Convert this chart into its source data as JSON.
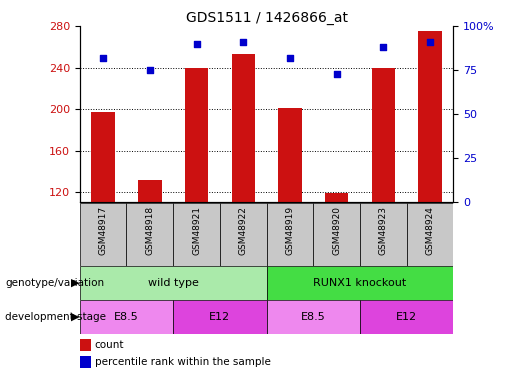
{
  "title": "GDS1511 / 1426866_at",
  "samples": [
    "GSM48917",
    "GSM48918",
    "GSM48921",
    "GSM48922",
    "GSM48919",
    "GSM48920",
    "GSM48923",
    "GSM48924"
  ],
  "counts": [
    197,
    132,
    240,
    253,
    201,
    119,
    240,
    275
  ],
  "percentiles": [
    82,
    75,
    90,
    91,
    82,
    73,
    88,
    91
  ],
  "ylim_left": [
    110,
    280
  ],
  "ylim_right": [
    0,
    100
  ],
  "yticks_left": [
    120,
    160,
    200,
    240,
    280
  ],
  "yticks_right": [
    0,
    25,
    50,
    75,
    100
  ],
  "bar_color": "#cc1111",
  "dot_color": "#0000cc",
  "bar_bottom": 110,
  "genotype_groups": [
    {
      "label": "wild type",
      "start": 0,
      "end": 4,
      "color": "#aaeaaa"
    },
    {
      "label": "RUNX1 knockout",
      "start": 4,
      "end": 8,
      "color": "#44dd44"
    }
  ],
  "dev_stage_groups": [
    {
      "label": "E8.5",
      "start": 0,
      "end": 2,
      "color": "#ee88ee"
    },
    {
      "label": "E12",
      "start": 2,
      "end": 4,
      "color": "#dd44dd"
    },
    {
      "label": "E8.5",
      "start": 4,
      "end": 6,
      "color": "#ee88ee"
    },
    {
      "label": "E12",
      "start": 6,
      "end": 8,
      "color": "#dd44dd"
    }
  ],
  "sample_box_color": "#c8c8c8",
  "tick_label_color_left": "#cc1111",
  "tick_label_color_right": "#0000cc",
  "label_geno": "genotype/variation",
  "label_dev": "development stage",
  "legend_count": "count",
  "legend_pct": "percentile rank within the sample"
}
